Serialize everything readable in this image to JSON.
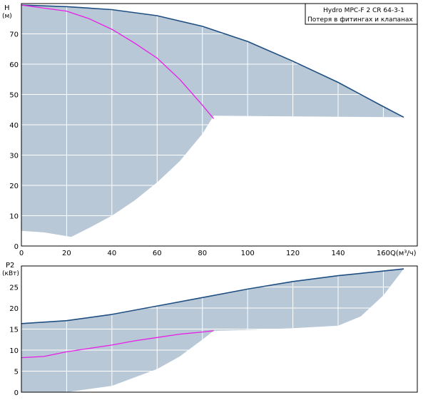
{
  "legend": {
    "line1": "Hydro  MPC-F  2  CR  64-3-1",
    "line2": "Потеря в фитингах и клапанах"
  },
  "colors": {
    "envelope_fill": "#b9c8d6",
    "max_curve": "#1f4f82",
    "duty_curve": "#e81ee8",
    "grid": "#ffffff",
    "frame": "#000000"
  },
  "chart_data": [
    {
      "type": "area",
      "name": "head",
      "ylabel_line1": "H",
      "ylabel_line2": "(м)",
      "xlabel": "Q(м³/ч)",
      "xlim": [
        0,
        175
      ],
      "ylim": [
        0,
        80
      ],
      "x_ticks": [
        0,
        20,
        40,
        60,
        80,
        100,
        120,
        140,
        160
      ],
      "y_ticks": [
        0,
        10,
        20,
        30,
        40,
        50,
        60,
        70
      ],
      "grid": true,
      "envelope_upper": [
        {
          "x": 0,
          "y": 79.5
        },
        {
          "x": 20,
          "y": 79.0
        },
        {
          "x": 40,
          "y": 78.0
        },
        {
          "x": 60,
          "y": 76.0
        },
        {
          "x": 80,
          "y": 72.5
        },
        {
          "x": 100,
          "y": 67.5
        },
        {
          "x": 120,
          "y": 61.0
        },
        {
          "x": 140,
          "y": 54.0
        },
        {
          "x": 160,
          "y": 46.0
        },
        {
          "x": 169,
          "y": 42.5
        }
      ],
      "envelope_lower": [
        {
          "x": 169,
          "y": 42.5
        },
        {
          "x": 85,
          "y": 43.0
        },
        {
          "x": 80,
          "y": 37.0
        },
        {
          "x": 70,
          "y": 28.0
        },
        {
          "x": 60,
          "y": 21.0
        },
        {
          "x": 50,
          "y": 15.0
        },
        {
          "x": 40,
          "y": 10.0
        },
        {
          "x": 30,
          "y": 6.0
        },
        {
          "x": 22,
          "y": 3.0
        },
        {
          "x": 10,
          "y": 4.5
        },
        {
          "x": 0,
          "y": 5.0
        }
      ],
      "series": [
        {
          "name": "max",
          "points": [
            {
              "x": 0,
              "y": 79.5
            },
            {
              "x": 20,
              "y": 79.0
            },
            {
              "x": 40,
              "y": 78.0
            },
            {
              "x": 60,
              "y": 76.0
            },
            {
              "x": 80,
              "y": 72.5
            },
            {
              "x": 100,
              "y": 67.5
            },
            {
              "x": 120,
              "y": 61.0
            },
            {
              "x": 140,
              "y": 54.0
            },
            {
              "x": 160,
              "y": 46.0
            },
            {
              "x": 169,
              "y": 42.5
            }
          ]
        },
        {
          "name": "duty",
          "points": [
            {
              "x": 0,
              "y": 79.5
            },
            {
              "x": 20,
              "y": 77.5
            },
            {
              "x": 30,
              "y": 75.0
            },
            {
              "x": 40,
              "y": 71.5
            },
            {
              "x": 50,
              "y": 67.0
            },
            {
              "x": 60,
              "y": 62.0
            },
            {
              "x": 70,
              "y": 55.0
            },
            {
              "x": 80,
              "y": 46.5
            },
            {
              "x": 85,
              "y": 42.0
            }
          ]
        }
      ]
    },
    {
      "type": "area",
      "name": "power",
      "ylabel_line1": "P2",
      "ylabel_line2": "(кВт)",
      "xlim": [
        0,
        175
      ],
      "ylim": [
        0,
        30
      ],
      "x_ticks": [
        0,
        20,
        40,
        60,
        80,
        100,
        120,
        140,
        160
      ],
      "y_ticks": [
        0,
        5,
        10,
        15,
        20,
        25
      ],
      "grid": true,
      "envelope_upper": [
        {
          "x": 0,
          "y": 16.3
        },
        {
          "x": 20,
          "y": 17.0
        },
        {
          "x": 40,
          "y": 18.5
        },
        {
          "x": 60,
          "y": 20.5
        },
        {
          "x": 80,
          "y": 22.5
        },
        {
          "x": 100,
          "y": 24.5
        },
        {
          "x": 120,
          "y": 26.3
        },
        {
          "x": 140,
          "y": 27.7
        },
        {
          "x": 160,
          "y": 28.8
        },
        {
          "x": 169,
          "y": 29.3
        }
      ],
      "envelope_lower": [
        {
          "x": 169,
          "y": 29.3
        },
        {
          "x": 160,
          "y": 23.0
        },
        {
          "x": 150,
          "y": 18.0
        },
        {
          "x": 140,
          "y": 15.8
        },
        {
          "x": 120,
          "y": 15.2
        },
        {
          "x": 100,
          "y": 14.8
        },
        {
          "x": 85,
          "y": 14.6
        },
        {
          "x": 80,
          "y": 12.5
        },
        {
          "x": 70,
          "y": 8.5
        },
        {
          "x": 60,
          "y": 5.5
        },
        {
          "x": 40,
          "y": 1.5
        },
        {
          "x": 20,
          "y": 0
        },
        {
          "x": 0,
          "y": 0
        }
      ],
      "series": [
        {
          "name": "max",
          "points": [
            {
              "x": 0,
              "y": 16.3
            },
            {
              "x": 20,
              "y": 17.0
            },
            {
              "x": 40,
              "y": 18.5
            },
            {
              "x": 60,
              "y": 20.5
            },
            {
              "x": 80,
              "y": 22.5
            },
            {
              "x": 100,
              "y": 24.5
            },
            {
              "x": 120,
              "y": 26.3
            },
            {
              "x": 140,
              "y": 27.7
            },
            {
              "x": 160,
              "y": 28.8
            },
            {
              "x": 169,
              "y": 29.3
            }
          ]
        },
        {
          "name": "duty",
          "points": [
            {
              "x": 0,
              "y": 8.2
            },
            {
              "x": 10,
              "y": 8.5
            },
            {
              "x": 20,
              "y": 9.6
            },
            {
              "x": 30,
              "y": 10.4
            },
            {
              "x": 40,
              "y": 11.2
            },
            {
              "x": 50,
              "y": 12.2
            },
            {
              "x": 60,
              "y": 13.0
            },
            {
              "x": 70,
              "y": 13.8
            },
            {
              "x": 80,
              "y": 14.3
            },
            {
              "x": 85,
              "y": 14.6
            }
          ]
        }
      ]
    }
  ]
}
